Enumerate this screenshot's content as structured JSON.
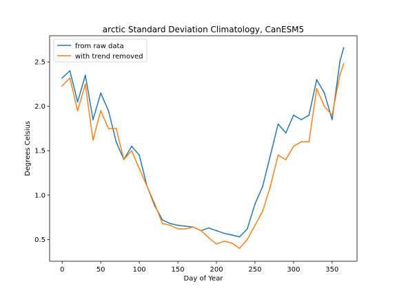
{
  "chart_data": {
    "type": "line",
    "title": "arctic Standard Deviation Climatology, CanESM5",
    "xlabel": "Day of Year",
    "ylabel": "Degrees Celsius",
    "xlim": [
      -16.3,
      382.3
    ],
    "ylim": [
      0.255,
      2.795
    ],
    "xticks": [
      0,
      50,
      100,
      150,
      200,
      250,
      300,
      350
    ],
    "yticks": [
      0.5,
      1.0,
      1.5,
      2.0,
      2.5
    ],
    "xtick_labels": [
      "0",
      "50",
      "100",
      "150",
      "200",
      "250",
      "300",
      "350"
    ],
    "ytick_labels": [
      "0.5",
      "1.0",
      "1.5",
      "2.0",
      "2.5"
    ],
    "grid": false,
    "legend_position": "upper left",
    "x": [
      0,
      10,
      20,
      30,
      40,
      50,
      60,
      70,
      80,
      90,
      100,
      110,
      120,
      130,
      140,
      150,
      160,
      170,
      180,
      190,
      200,
      210,
      220,
      230,
      240,
      250,
      260,
      270,
      280,
      290,
      300,
      310,
      320,
      330,
      340,
      350,
      360,
      365
    ],
    "series": [
      {
        "name": "from raw data",
        "color": "#1f77b4",
        "values": [
          2.32,
          2.4,
          2.05,
          2.35,
          1.85,
          2.15,
          1.95,
          1.6,
          1.4,
          1.55,
          1.45,
          1.1,
          0.88,
          0.72,
          0.68,
          0.66,
          0.65,
          0.64,
          0.6,
          0.63,
          0.6,
          0.57,
          0.55,
          0.53,
          0.62,
          0.9,
          1.1,
          1.45,
          1.8,
          1.7,
          1.9,
          1.85,
          1.9,
          2.3,
          2.15,
          1.85,
          2.5,
          2.66
        ]
      },
      {
        "name": "with trend removed",
        "color": "#ff7f0e",
        "values": [
          2.23,
          2.32,
          1.95,
          2.25,
          1.62,
          1.95,
          1.75,
          1.75,
          1.4,
          1.5,
          1.3,
          1.1,
          0.9,
          0.68,
          0.66,
          0.62,
          0.62,
          0.64,
          0.6,
          0.52,
          0.45,
          0.48,
          0.46,
          0.4,
          0.5,
          0.66,
          0.82,
          1.1,
          1.45,
          1.4,
          1.55,
          1.6,
          1.6,
          2.2,
          2.0,
          1.9,
          2.35,
          2.48
        ]
      }
    ]
  }
}
